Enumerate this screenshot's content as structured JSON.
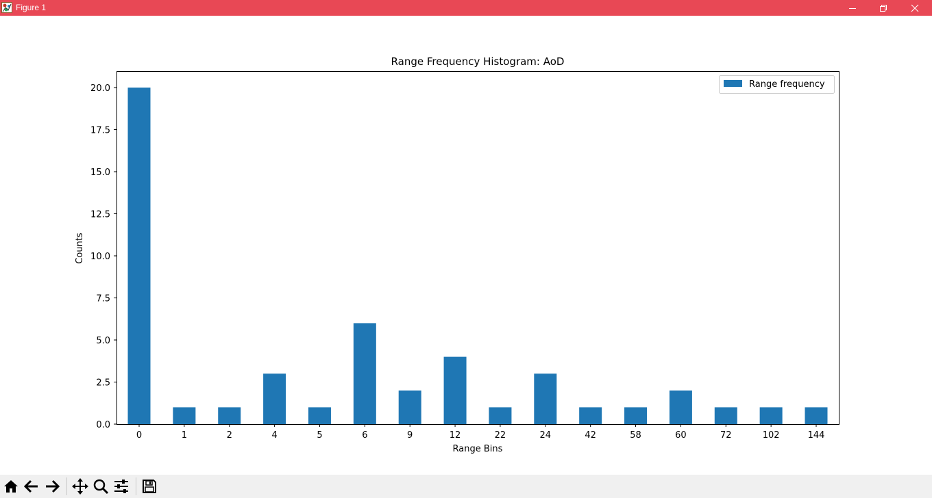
{
  "window": {
    "title": "Figure 1",
    "controls": [
      "minimize-icon",
      "restore-icon",
      "close-icon"
    ],
    "titlebar_color": "#e84855"
  },
  "toolbar": {
    "buttons": [
      "home-icon",
      "back-arrow-icon",
      "forward-arrow-icon",
      "pan-icon",
      "zoom-icon",
      "configure-subplots-icon",
      "save-icon"
    ]
  },
  "chart_data": {
    "type": "bar",
    "title": "Range Frequency Histogram: AoD",
    "xlabel": "Range Bins",
    "ylabel": "Counts",
    "categories": [
      "0",
      "1",
      "2",
      "4",
      "5",
      "6",
      "9",
      "12",
      "22",
      "24",
      "42",
      "58",
      "60",
      "72",
      "102",
      "144"
    ],
    "series": [
      {
        "name": "Range frequency",
        "color": "#1f77b4",
        "values": [
          20,
          1,
          1,
          3,
          1,
          6,
          2,
          4,
          1,
          3,
          1,
          1,
          2,
          1,
          1,
          1
        ]
      }
    ],
    "ylim": [
      0,
      21
    ],
    "yticks": [
      0.0,
      2.5,
      5.0,
      7.5,
      10.0,
      12.5,
      15.0,
      17.5,
      20.0
    ],
    "ytick_labels": [
      "0.0",
      "2.5",
      "5.0",
      "7.5",
      "10.0",
      "12.5",
      "15.0",
      "17.5",
      "20.0"
    ],
    "legend": "top-right",
    "grid": false
  }
}
